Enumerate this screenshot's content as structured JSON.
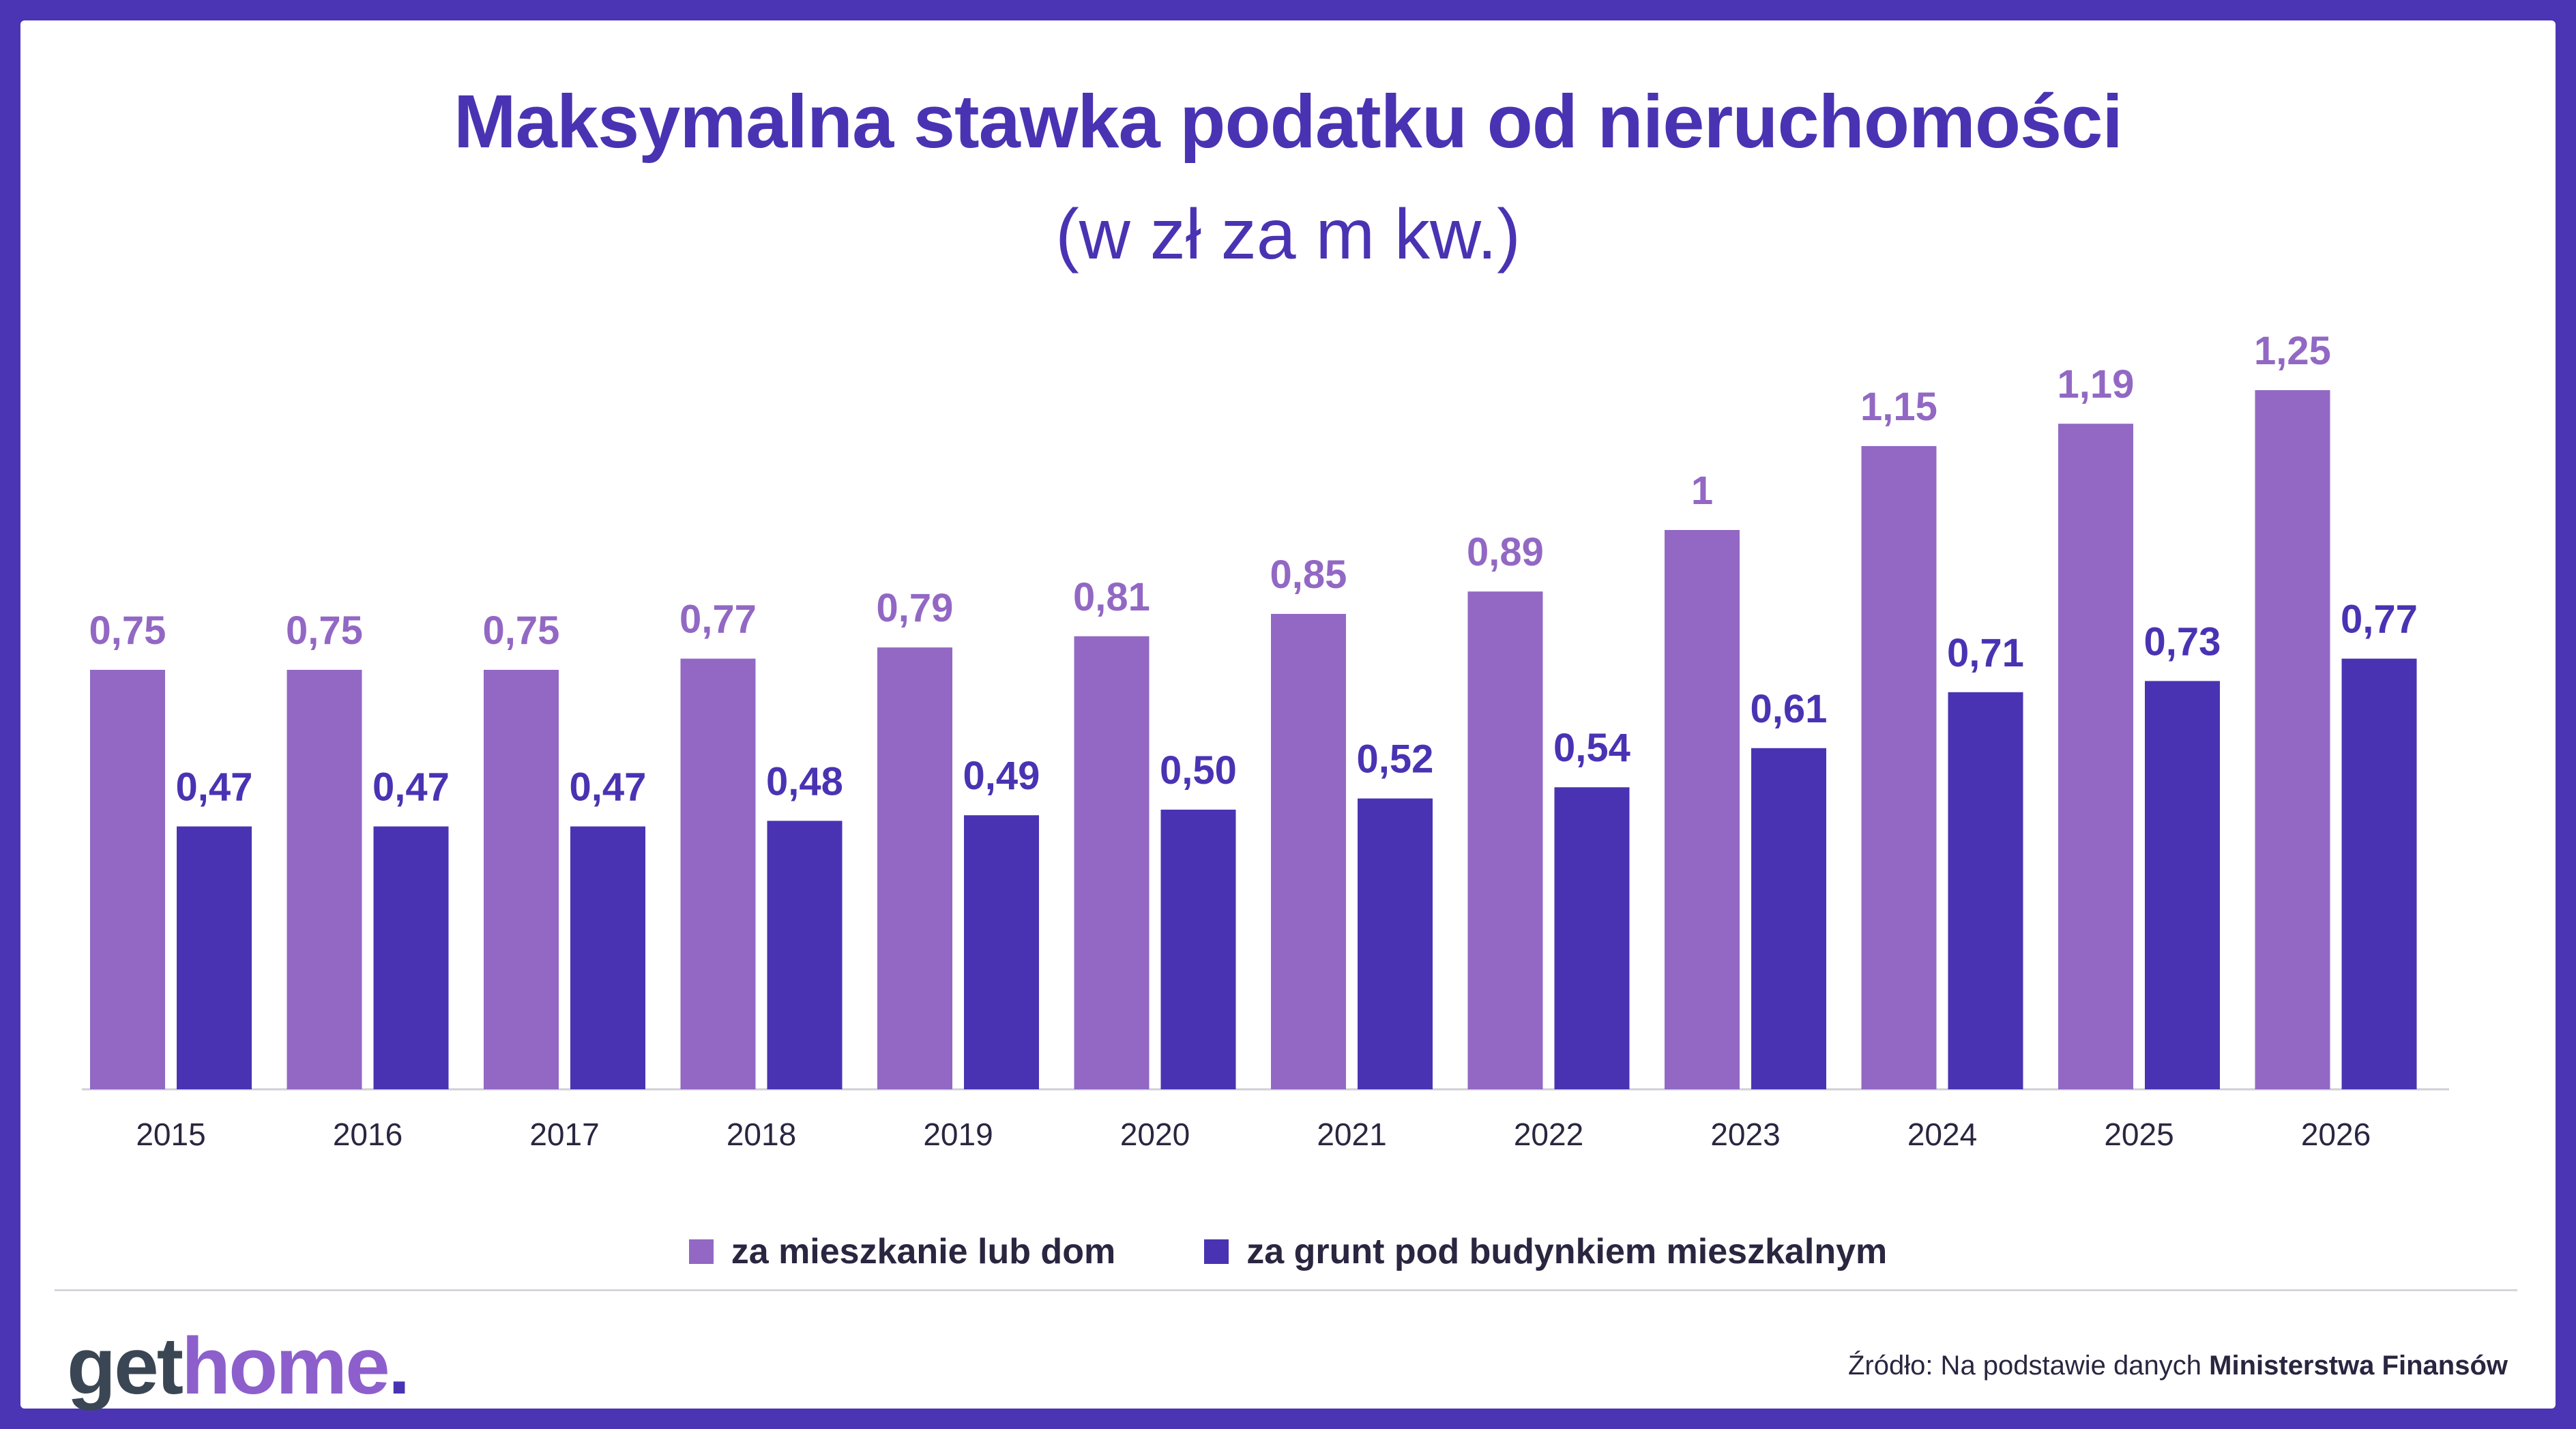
{
  "colors": {
    "background": "#4c35b4",
    "series1": "#9268c4",
    "series2": "#4a33b3",
    "axis_text": "#2a2640"
  },
  "title": "Maksymalna stawka podatku od nieruchomości",
  "subtitle": "(w zł za m kw.)",
  "chart_data": {
    "type": "bar",
    "categories": [
      "2015",
      "2016",
      "2017",
      "2018",
      "2019",
      "2020",
      "2021",
      "2022",
      "2023",
      "2024",
      "2025",
      "2026"
    ],
    "series": [
      {
        "name": "za mieszkanie lub dom",
        "values": [
          0.75,
          0.75,
          0.75,
          0.77,
          0.79,
          0.81,
          0.85,
          0.89,
          1,
          1.15,
          1.19,
          1.25
        ],
        "labels": [
          "0,75",
          "0,75",
          "0,75",
          "0,77",
          "0,79",
          "0,81",
          "0,85",
          "0,89",
          "1",
          "1,15",
          "1,19",
          "1,25"
        ]
      },
      {
        "name": "za grunt pod budynkiem mieszkalnym",
        "values": [
          0.47,
          0.47,
          0.47,
          0.48,
          0.49,
          0.5,
          0.52,
          0.54,
          0.61,
          0.71,
          0.73,
          0.77
        ],
        "labels": [
          "0,47",
          "0,47",
          "0,47",
          "0,48",
          "0,49",
          "0,50",
          "0,52",
          "0,54",
          "0,61",
          "0,71",
          "0,73",
          "0,77"
        ]
      }
    ],
    "ylim": [
      0,
      1.25
    ],
    "grid": false,
    "legend_position": "bottom"
  },
  "logo": {
    "part1": "get",
    "part2": "home",
    "part3": "."
  },
  "source": {
    "prefix": "Źródło: Na podstawie danych ",
    "bold": "Ministerstwa Finansów"
  }
}
